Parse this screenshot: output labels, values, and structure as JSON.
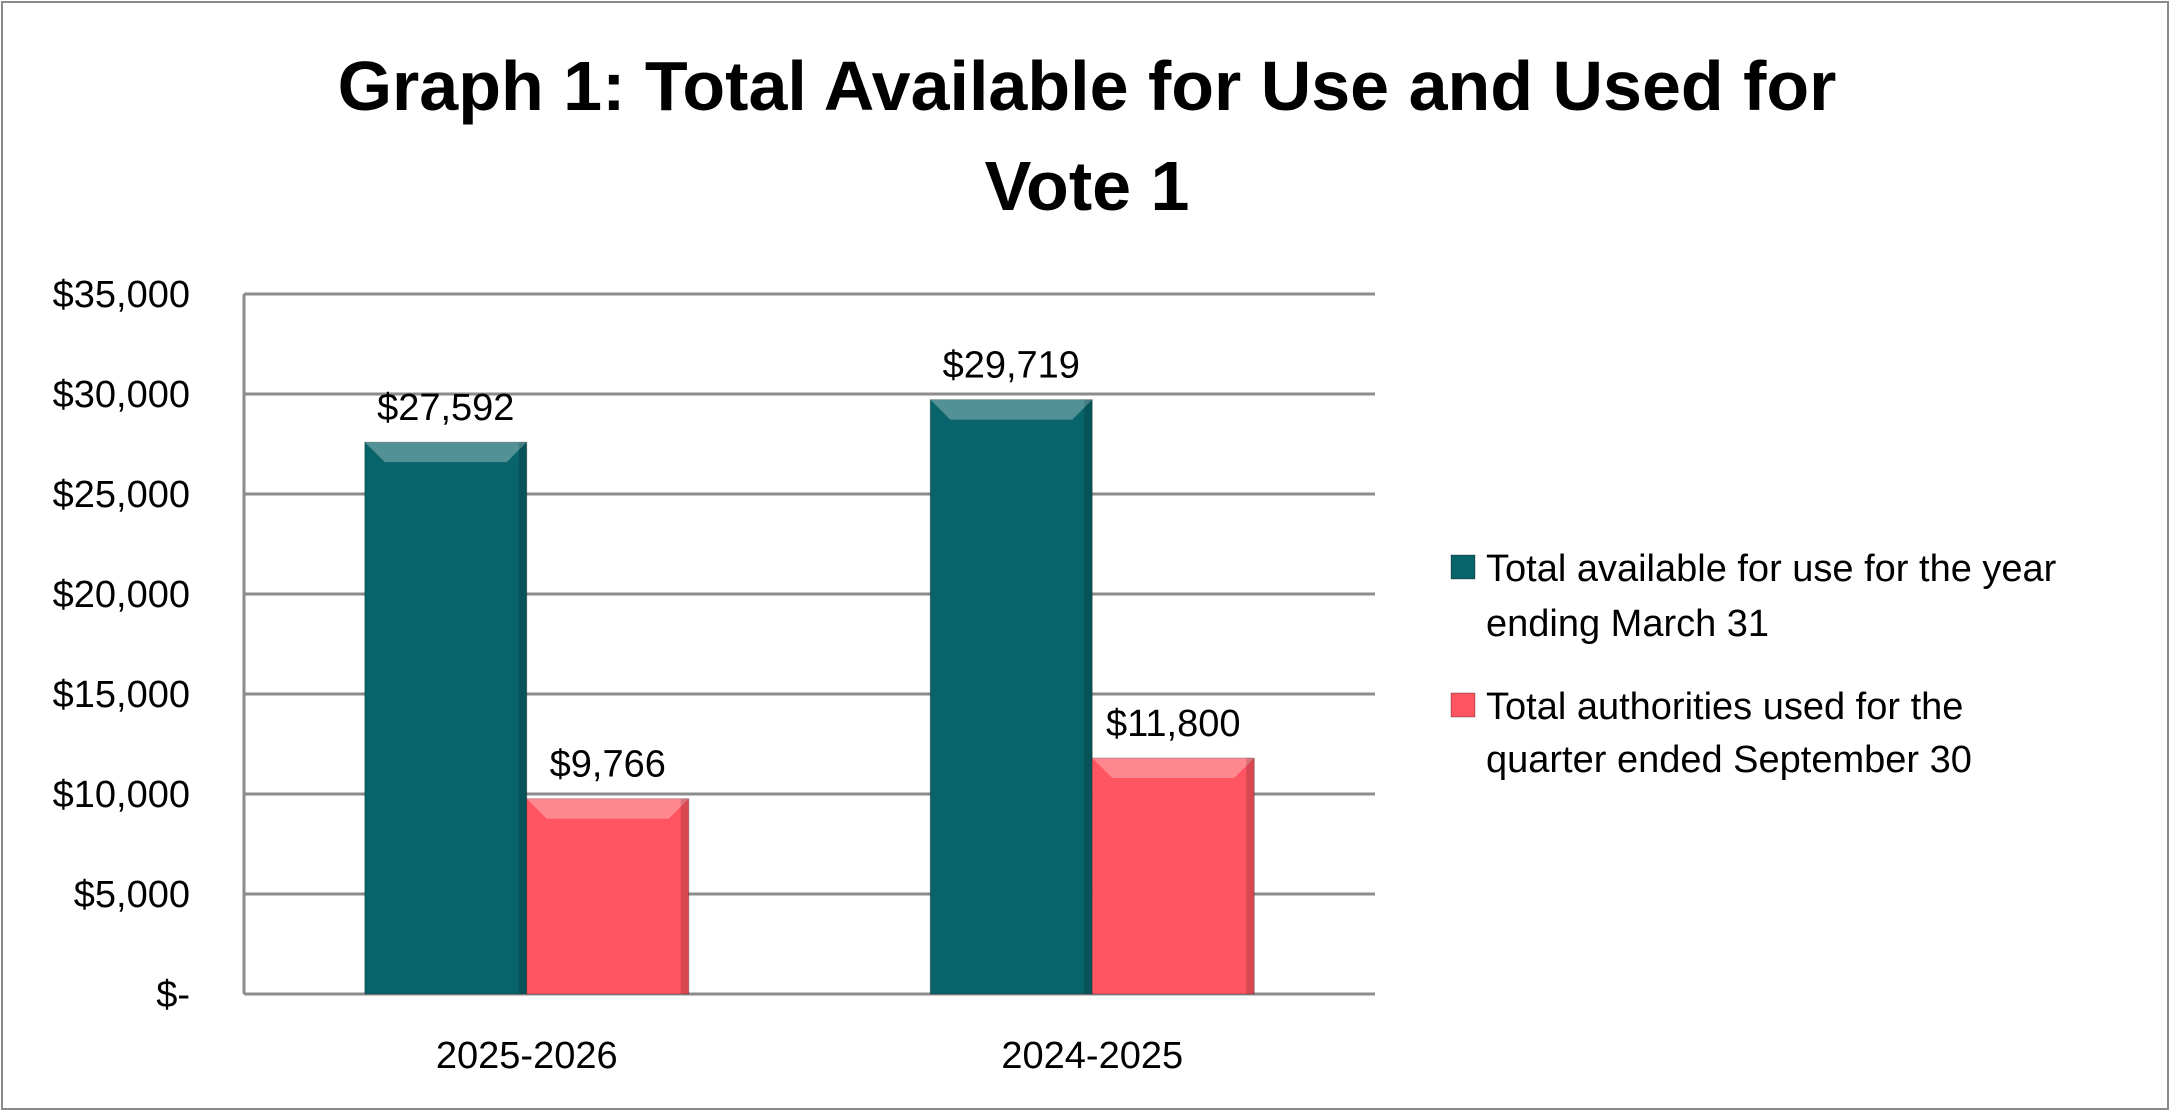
{
  "chart_data": {
    "type": "bar",
    "title_lines": [
      "Graph 1: Total Available for Use and Used for",
      "Vote 1"
    ],
    "xlabel": "",
    "ylabel": "",
    "categories": [
      "2025-2026",
      "2024-2025"
    ],
    "series": [
      {
        "name_lines": [
          "Total available for use for the year",
          "ending March 31"
        ],
        "values": [
          27592,
          29719
        ],
        "labels": [
          "$27,592",
          "$29,719"
        ],
        "color": "#08636A"
      },
      {
        "name_lines": [
          "Total authorities used for the",
          "quarter ended September 30"
        ],
        "values": [
          9766,
          11800
        ],
        "labels": [
          "$9,766",
          "$11,800"
        ],
        "color": "#FF5560"
      }
    ],
    "ylim": [
      0,
      35000
    ],
    "yticks": [
      0,
      5000,
      10000,
      15000,
      20000,
      25000,
      30000,
      35000
    ],
    "ytick_labels": [
      "$-",
      "$5,000",
      "$10,000",
      "$15,000",
      "$20,000",
      "$25,000",
      "$30,000",
      "$35,000"
    ],
    "grid": true,
    "legend_position": "right"
  }
}
